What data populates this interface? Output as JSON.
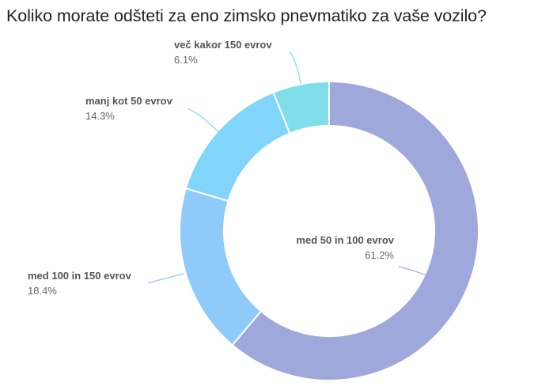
{
  "chart_data": {
    "type": "pie",
    "variant": "donut",
    "title": "Koliko morate odšteti za eno zimsko pnevmatiko za vaše vozilo?",
    "categories": [
      "med 50 in 100 evrov",
      "med 100 in 150 evrov",
      "manj kot 50 evrov",
      "več kakor 150 evrov"
    ],
    "values": [
      61.2,
      18.4,
      14.3,
      6.1
    ],
    "value_labels": [
      "61.2%",
      "18.4%",
      "14.3%",
      "6.1%"
    ],
    "colors": [
      "#9FA8DA",
      "#90CAF9",
      "#81D4FA",
      "#80DEEA"
    ],
    "start_angle": "top, clockwise",
    "legend": "none (inline labels with leader lines)"
  },
  "title": "Koliko morate odšteti za eno zimsko pnevmatiko za vaše vozilo?",
  "labels": {
    "s0": {
      "name": "med 50 in 100 evrov",
      "pct": "61.2%"
    },
    "s1": {
      "name": "med 100 in 150 evrov",
      "pct": "18.4%"
    },
    "s2": {
      "name": "manj kot 50 evrov",
      "pct": "14.3%"
    },
    "s3": {
      "name": "več kakor 150 evrov",
      "pct": "6.1%"
    }
  }
}
